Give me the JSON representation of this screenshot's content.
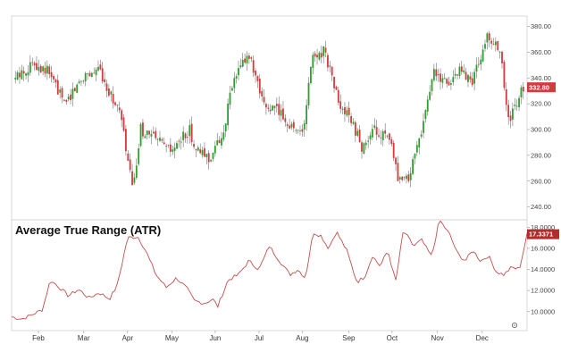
{
  "chart_data": [
    {
      "type": "candlestick",
      "title": "",
      "ylim": [
        230,
        388
      ],
      "y_ticks": [
        "240.00",
        "260.00",
        "280.00",
        "300.00",
        "320.00",
        "340.00",
        "360.00",
        "380.00"
      ],
      "y_tick_values": [
        240,
        260,
        280,
        300,
        320,
        340,
        360,
        380
      ],
      "last_price_label": "332.80",
      "last_price": 332.8,
      "up_color": "#2e9e2e",
      "down_color": "#d23c3c",
      "close_path": [
        [
          0,
          338
        ],
        [
          0.04,
          352
        ],
        [
          0.07,
          345
        ],
        [
          0.1,
          320
        ],
        [
          0.14,
          343
        ],
        [
          0.17,
          346
        ],
        [
          0.19,
          328
        ],
        [
          0.21,
          312
        ],
        [
          0.225,
          275
        ],
        [
          0.235,
          252
        ],
        [
          0.25,
          300
        ],
        [
          0.28,
          292
        ],
        [
          0.31,
          282
        ],
        [
          0.345,
          300
        ],
        [
          0.36,
          283
        ],
        [
          0.385,
          278
        ],
        [
          0.41,
          295
        ],
        [
          0.43,
          335
        ],
        [
          0.46,
          360
        ],
        [
          0.49,
          318
        ],
        [
          0.52,
          315
        ],
        [
          0.545,
          302
        ],
        [
          0.57,
          300
        ],
        [
          0.585,
          355
        ],
        [
          0.61,
          362
        ],
        [
          0.64,
          318
        ],
        [
          0.665,
          305
        ],
        [
          0.685,
          285
        ],
        [
          0.71,
          300
        ],
        [
          0.74,
          290
        ],
        [
          0.755,
          258
        ],
        [
          0.775,
          262
        ],
        [
          0.8,
          300
        ],
        [
          0.825,
          345
        ],
        [
          0.85,
          335
        ],
        [
          0.875,
          345
        ],
        [
          0.9,
          338
        ],
        [
          0.93,
          372
        ],
        [
          0.955,
          360
        ],
        [
          0.97,
          305
        ],
        [
          1.0,
          333
        ]
      ],
      "num_candles": 240,
      "seed": 13
    },
    {
      "type": "line",
      "title": "Average True Range (ATR)",
      "series": [
        {
          "name": "",
          "color": "#c0504d"
        }
      ],
      "ylim": [
        8.2,
        18.7
      ],
      "y_ticks": [
        "10.0000",
        "12.0000",
        "14.0000",
        "16.0000",
        "18.0000"
      ],
      "y_tick_values": [
        10,
        12,
        14,
        16,
        18
      ],
      "last_value_label": "17.3371",
      "last_value": 17.3371,
      "x_tick_labels": [
        "Feb",
        "Mar",
        "Apr",
        "May",
        "Jun",
        "Jul",
        "Aug",
        "Sep",
        "Oct",
        "Nov",
        "Dec"
      ],
      "x_tick_positions": [
        0.052,
        0.14,
        0.225,
        0.311,
        0.395,
        0.48,
        0.564,
        0.654,
        0.738,
        0.826,
        0.913
      ],
      "points": [
        [
          0,
          9.5
        ],
        [
          0.02,
          9.3
        ],
        [
          0.035,
          9.6
        ],
        [
          0.06,
          10.2
        ],
        [
          0.075,
          13.0
        ],
        [
          0.095,
          12.2
        ],
        [
          0.11,
          11.5
        ],
        [
          0.13,
          12.1
        ],
        [
          0.15,
          11.3
        ],
        [
          0.17,
          11.8
        ],
        [
          0.19,
          11.2
        ],
        [
          0.205,
          12.5
        ],
        [
          0.225,
          17.0
        ],
        [
          0.245,
          17.1
        ],
        [
          0.26,
          15.8
        ],
        [
          0.28,
          13.5
        ],
        [
          0.3,
          12.3
        ],
        [
          0.32,
          13.2
        ],
        [
          0.34,
          12.2
        ],
        [
          0.355,
          11.0
        ],
        [
          0.375,
          10.8
        ],
        [
          0.39,
          11.2
        ],
        [
          0.4,
          10.5
        ],
        [
          0.42,
          13.0
        ],
        [
          0.44,
          13.5
        ],
        [
          0.46,
          14.8
        ],
        [
          0.48,
          14.0
        ],
        [
          0.5,
          16.2
        ],
        [
          0.52,
          14.8
        ],
        [
          0.54,
          13.5
        ],
        [
          0.555,
          14.0
        ],
        [
          0.57,
          13.2
        ],
        [
          0.585,
          17.5
        ],
        [
          0.6,
          17.2
        ],
        [
          0.615,
          16.0
        ],
        [
          0.63,
          17.6
        ],
        [
          0.65,
          15.8
        ],
        [
          0.67,
          12.8
        ],
        [
          0.685,
          13.3
        ],
        [
          0.7,
          15.3
        ],
        [
          0.715,
          14.3
        ],
        [
          0.73,
          15.8
        ],
        [
          0.745,
          12.8
        ],
        [
          0.76,
          17.7
        ],
        [
          0.78,
          16.2
        ],
        [
          0.795,
          16.8
        ],
        [
          0.815,
          15.2
        ],
        [
          0.83,
          18.7
        ],
        [
          0.85,
          17.3
        ],
        [
          0.865,
          15.5
        ],
        [
          0.88,
          14.8
        ],
        [
          0.895,
          15.8
        ],
        [
          0.91,
          14.8
        ],
        [
          0.925,
          15.3
        ],
        [
          0.94,
          13.8
        ],
        [
          0.955,
          13.5
        ],
        [
          0.97,
          14.2
        ],
        [
          0.985,
          14.0
        ],
        [
          1.0,
          17.3
        ]
      ]
    }
  ],
  "icons": {
    "settings": "gear-icon"
  }
}
